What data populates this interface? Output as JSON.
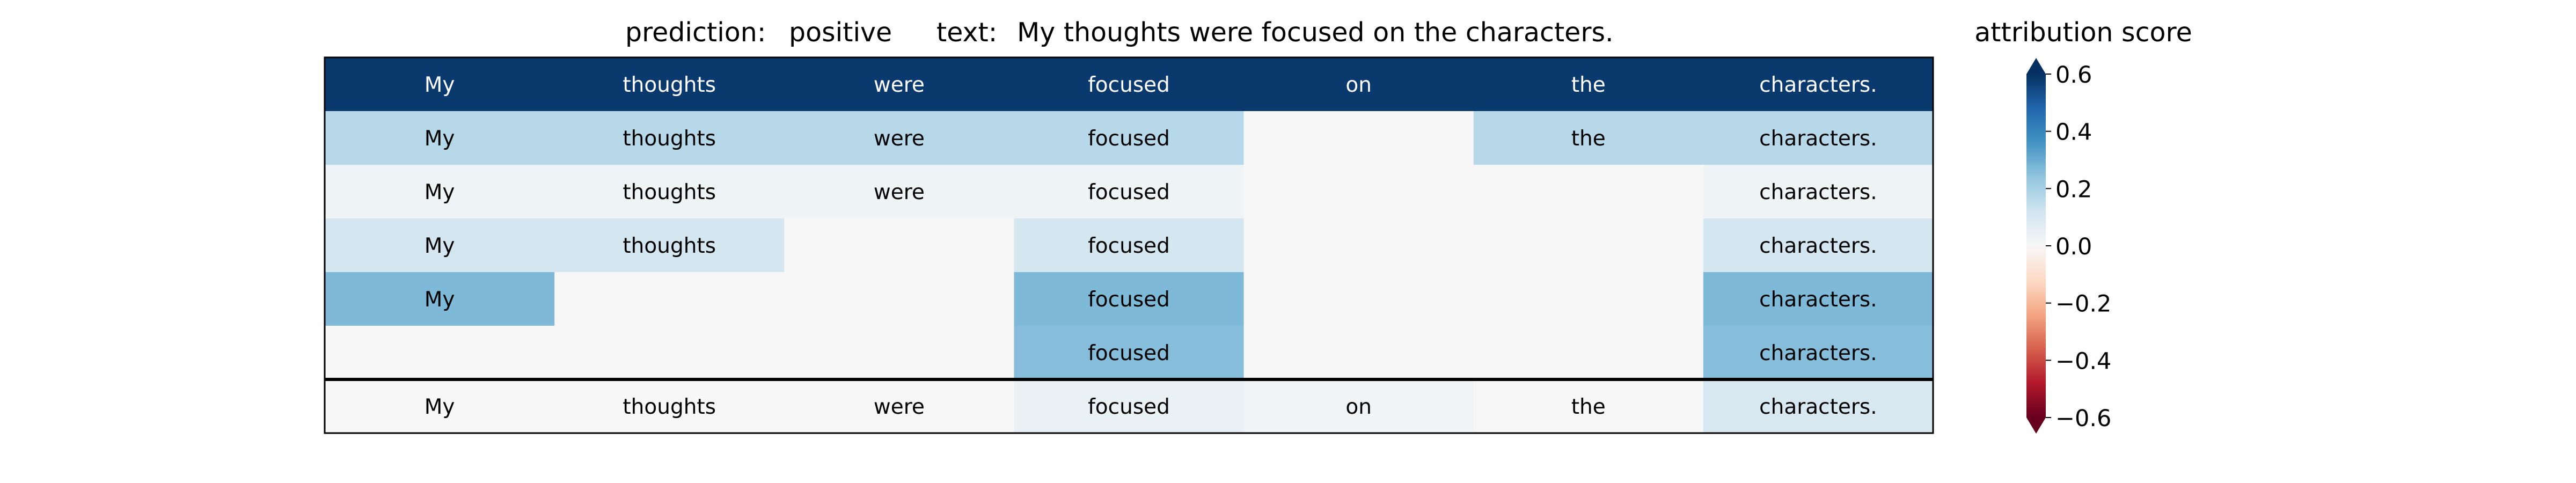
{
  "header": {
    "prediction_label": "prediction:",
    "prediction_value": "positive",
    "text_label": "text:",
    "text_value": "My thoughts were focused on the characters."
  },
  "colorbar": {
    "title": "attribution score",
    "colormap": "RdBu",
    "range": [
      -0.6,
      0.6
    ],
    "extend": "both",
    "ticks": [
      0.6,
      0.4,
      0.2,
      0.0,
      -0.2,
      -0.4,
      -0.6
    ],
    "tick_labels": [
      "0.6",
      "0.4",
      "0.2",
      "0.0",
      "−0.2",
      "−0.4",
      "−0.6"
    ]
  },
  "chart_data": {
    "type": "heatmap",
    "title": "",
    "xlabel": "",
    "ylabel": "",
    "grid": false,
    "tokens": [
      "My",
      "thoughts",
      "were",
      "focused",
      "on",
      "the",
      "characters."
    ],
    "rows": [
      {
        "labels": [
          "My",
          "thoughts",
          "were",
          "focused",
          "on",
          "the",
          "characters."
        ],
        "values": [
          0.58,
          0.58,
          0.58,
          0.58,
          0.58,
          0.58,
          0.58
        ]
      },
      {
        "labels": [
          "My",
          "thoughts",
          "were",
          "focused",
          "",
          "the",
          "characters."
        ],
        "values": [
          0.17,
          0.17,
          0.17,
          0.17,
          0.0,
          0.17,
          0.17
        ]
      },
      {
        "labels": [
          "My",
          "thoughts",
          "were",
          "focused",
          "",
          "",
          "characters."
        ],
        "values": [
          0.03,
          0.03,
          0.03,
          0.03,
          0.0,
          0.0,
          0.03
        ]
      },
      {
        "labels": [
          "My",
          "thoughts",
          "",
          "focused",
          "",
          "",
          "characters."
        ],
        "values": [
          0.11,
          0.11,
          0.0,
          0.11,
          0.0,
          0.0,
          0.11
        ]
      },
      {
        "labels": [
          "My",
          "",
          "",
          "focused",
          "",
          "",
          "characters."
        ],
        "values": [
          0.27,
          0.0,
          0.0,
          0.27,
          0.0,
          0.0,
          0.27
        ]
      },
      {
        "labels": [
          "",
          "",
          "",
          "focused",
          "",
          "",
          "characters."
        ],
        "values": [
          0.0,
          0.0,
          0.0,
          0.26,
          0.0,
          0.0,
          0.26
        ]
      }
    ],
    "summary_row": {
      "labels": [
        "My",
        "thoughts",
        "were",
        "focused",
        "on",
        "the",
        "characters."
      ],
      "values": [
        0.0,
        0.0,
        0.0,
        0.04,
        0.02,
        0.0,
        0.1
      ]
    }
  }
}
